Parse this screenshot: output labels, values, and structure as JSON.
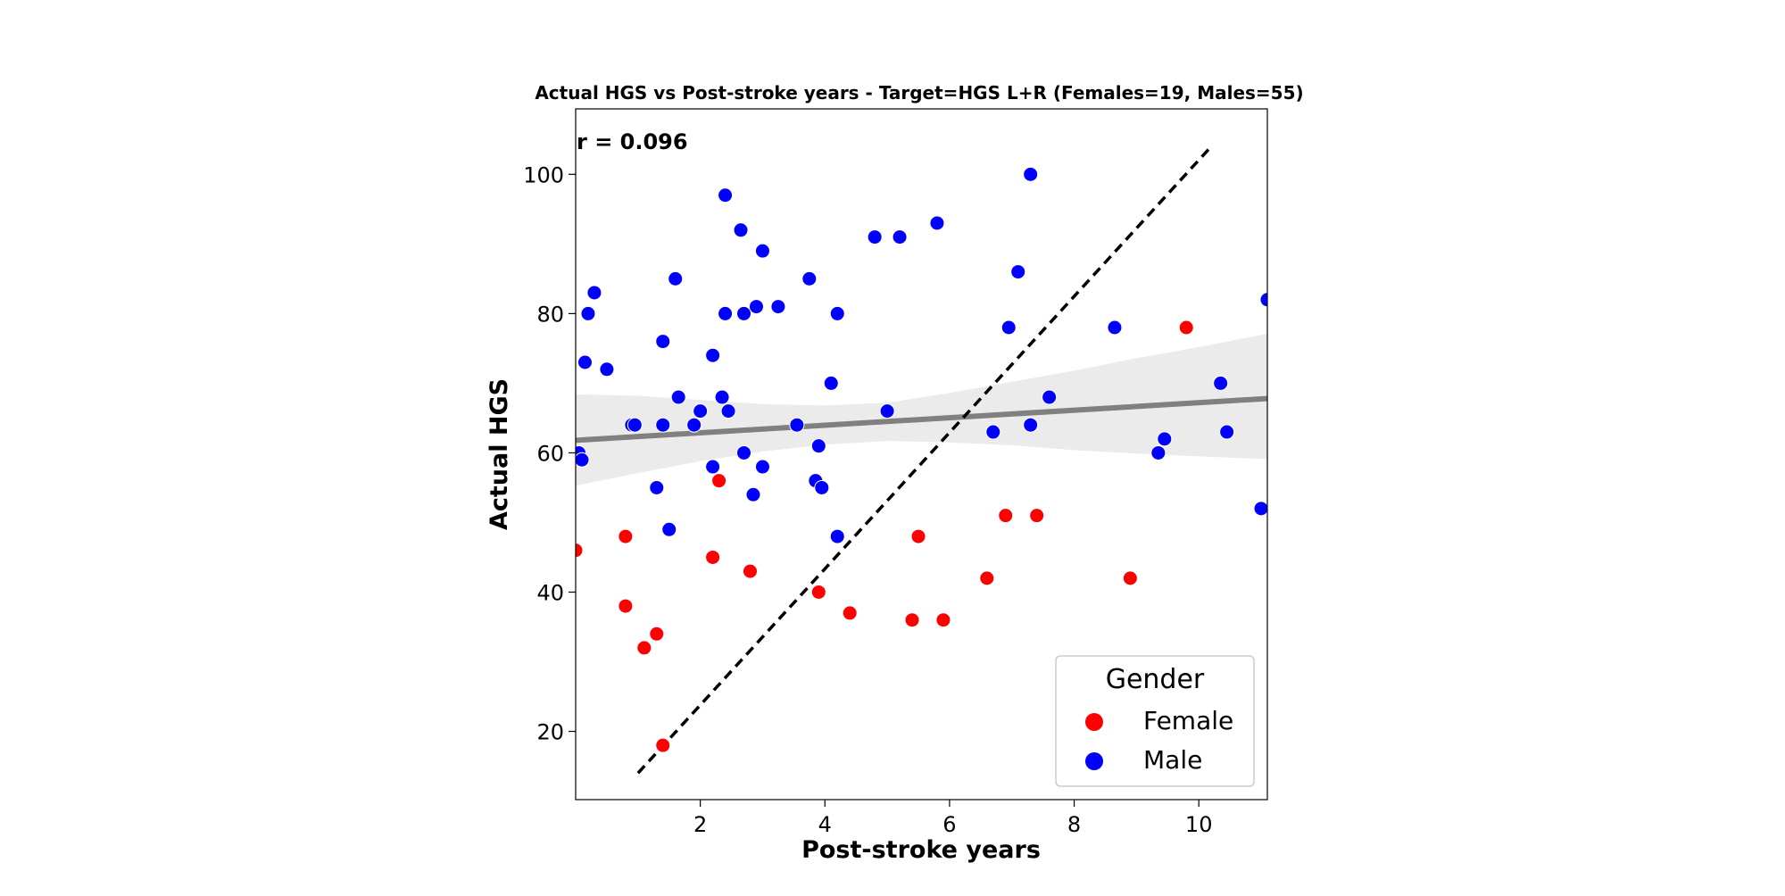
{
  "chart_data": {
    "type": "scatter",
    "title": "Actual HGS vs Post-stroke years - Target=HGS L+R (Females=19, Males=55)",
    "xlabel": "Post-stroke years",
    "ylabel": "Actual HGS",
    "xlim": [
      0,
      11.1
    ],
    "ylim": [
      10.2,
      109.4
    ],
    "xticks": [
      2,
      4,
      6,
      8,
      10
    ],
    "yticks": [
      20,
      40,
      60,
      80,
      100
    ],
    "grid": false,
    "annotation": "r = 0.096",
    "legend": {
      "title": "Gender",
      "placement": "lower-right",
      "entries": [
        "Female",
        "Male"
      ]
    },
    "colors": {
      "Female": "#ff0000",
      "Male": "#0000ff",
      "regression_line": "#808080",
      "confidence_band": "#ebebeb",
      "identity_line": "#000000"
    },
    "identity_line": {
      "x": [
        1.0,
        10.2
      ],
      "y": [
        14,
        104
      ]
    },
    "regression": {
      "x": [
        0,
        11.1
      ],
      "y": [
        61.8,
        67.8
      ]
    },
    "confidence_band": {
      "x": [
        0,
        1,
        2,
        3,
        4,
        5,
        6,
        7,
        8,
        9,
        10,
        11.1
      ],
      "lower": [
        55.3,
        57.1,
        58.8,
        60.2,
        61.2,
        61.7,
        61.5,
        61.1,
        60.4,
        59.9,
        59.5,
        59.1
      ],
      "upper": [
        68.4,
        68.2,
        67.6,
        67.0,
        66.8,
        67.2,
        68.6,
        70.2,
        71.8,
        73.6,
        75.2,
        77.1
      ]
    },
    "series": [
      {
        "name": "Female",
        "x": [
          0.0,
          0.8,
          0.8,
          1.1,
          1.3,
          1.4,
          2.2,
          2.3,
          2.8,
          3.9,
          4.4,
          5.4,
          5.5,
          5.9,
          6.6,
          6.9,
          7.4,
          8.9,
          9.8
        ],
        "y": [
          46,
          48,
          38,
          32,
          34,
          18,
          45,
          56,
          43,
          40,
          37,
          36,
          48,
          36,
          42,
          51,
          51,
          42,
          78
        ]
      },
      {
        "name": "Male",
        "x": [
          0.05,
          0.1,
          0.15,
          0.2,
          0.3,
          0.5,
          0.9,
          0.95,
          1.3,
          1.4,
          1.4,
          1.5,
          1.6,
          1.65,
          1.9,
          2.0,
          2.2,
          2.2,
          2.35,
          2.4,
          2.4,
          2.45,
          2.65,
          2.7,
          2.7,
          2.85,
          2.9,
          3.0,
          3.0,
          3.25,
          3.55,
          3.75,
          3.85,
          3.9,
          3.95,
          4.1,
          4.2,
          4.2,
          4.8,
          5.0,
          5.2,
          5.8,
          6.7,
          6.95,
          7.1,
          7.3,
          7.3,
          7.6,
          8.65,
          9.35,
          9.45,
          10.35,
          10.45,
          11.0,
          11.1
        ],
        "y": [
          60,
          59,
          73,
          80,
          83,
          72,
          64,
          64,
          55,
          76,
          64,
          49,
          85,
          68,
          64,
          66,
          74,
          58,
          68,
          97,
          80,
          66,
          92,
          80,
          60,
          54,
          81,
          89,
          58,
          81,
          64,
          85,
          56,
          61,
          55,
          70,
          80,
          48,
          91,
          66,
          91,
          93,
          63,
          78,
          86,
          64,
          100,
          68,
          78,
          60,
          62,
          70,
          63,
          52,
          82
        ]
      }
    ]
  }
}
